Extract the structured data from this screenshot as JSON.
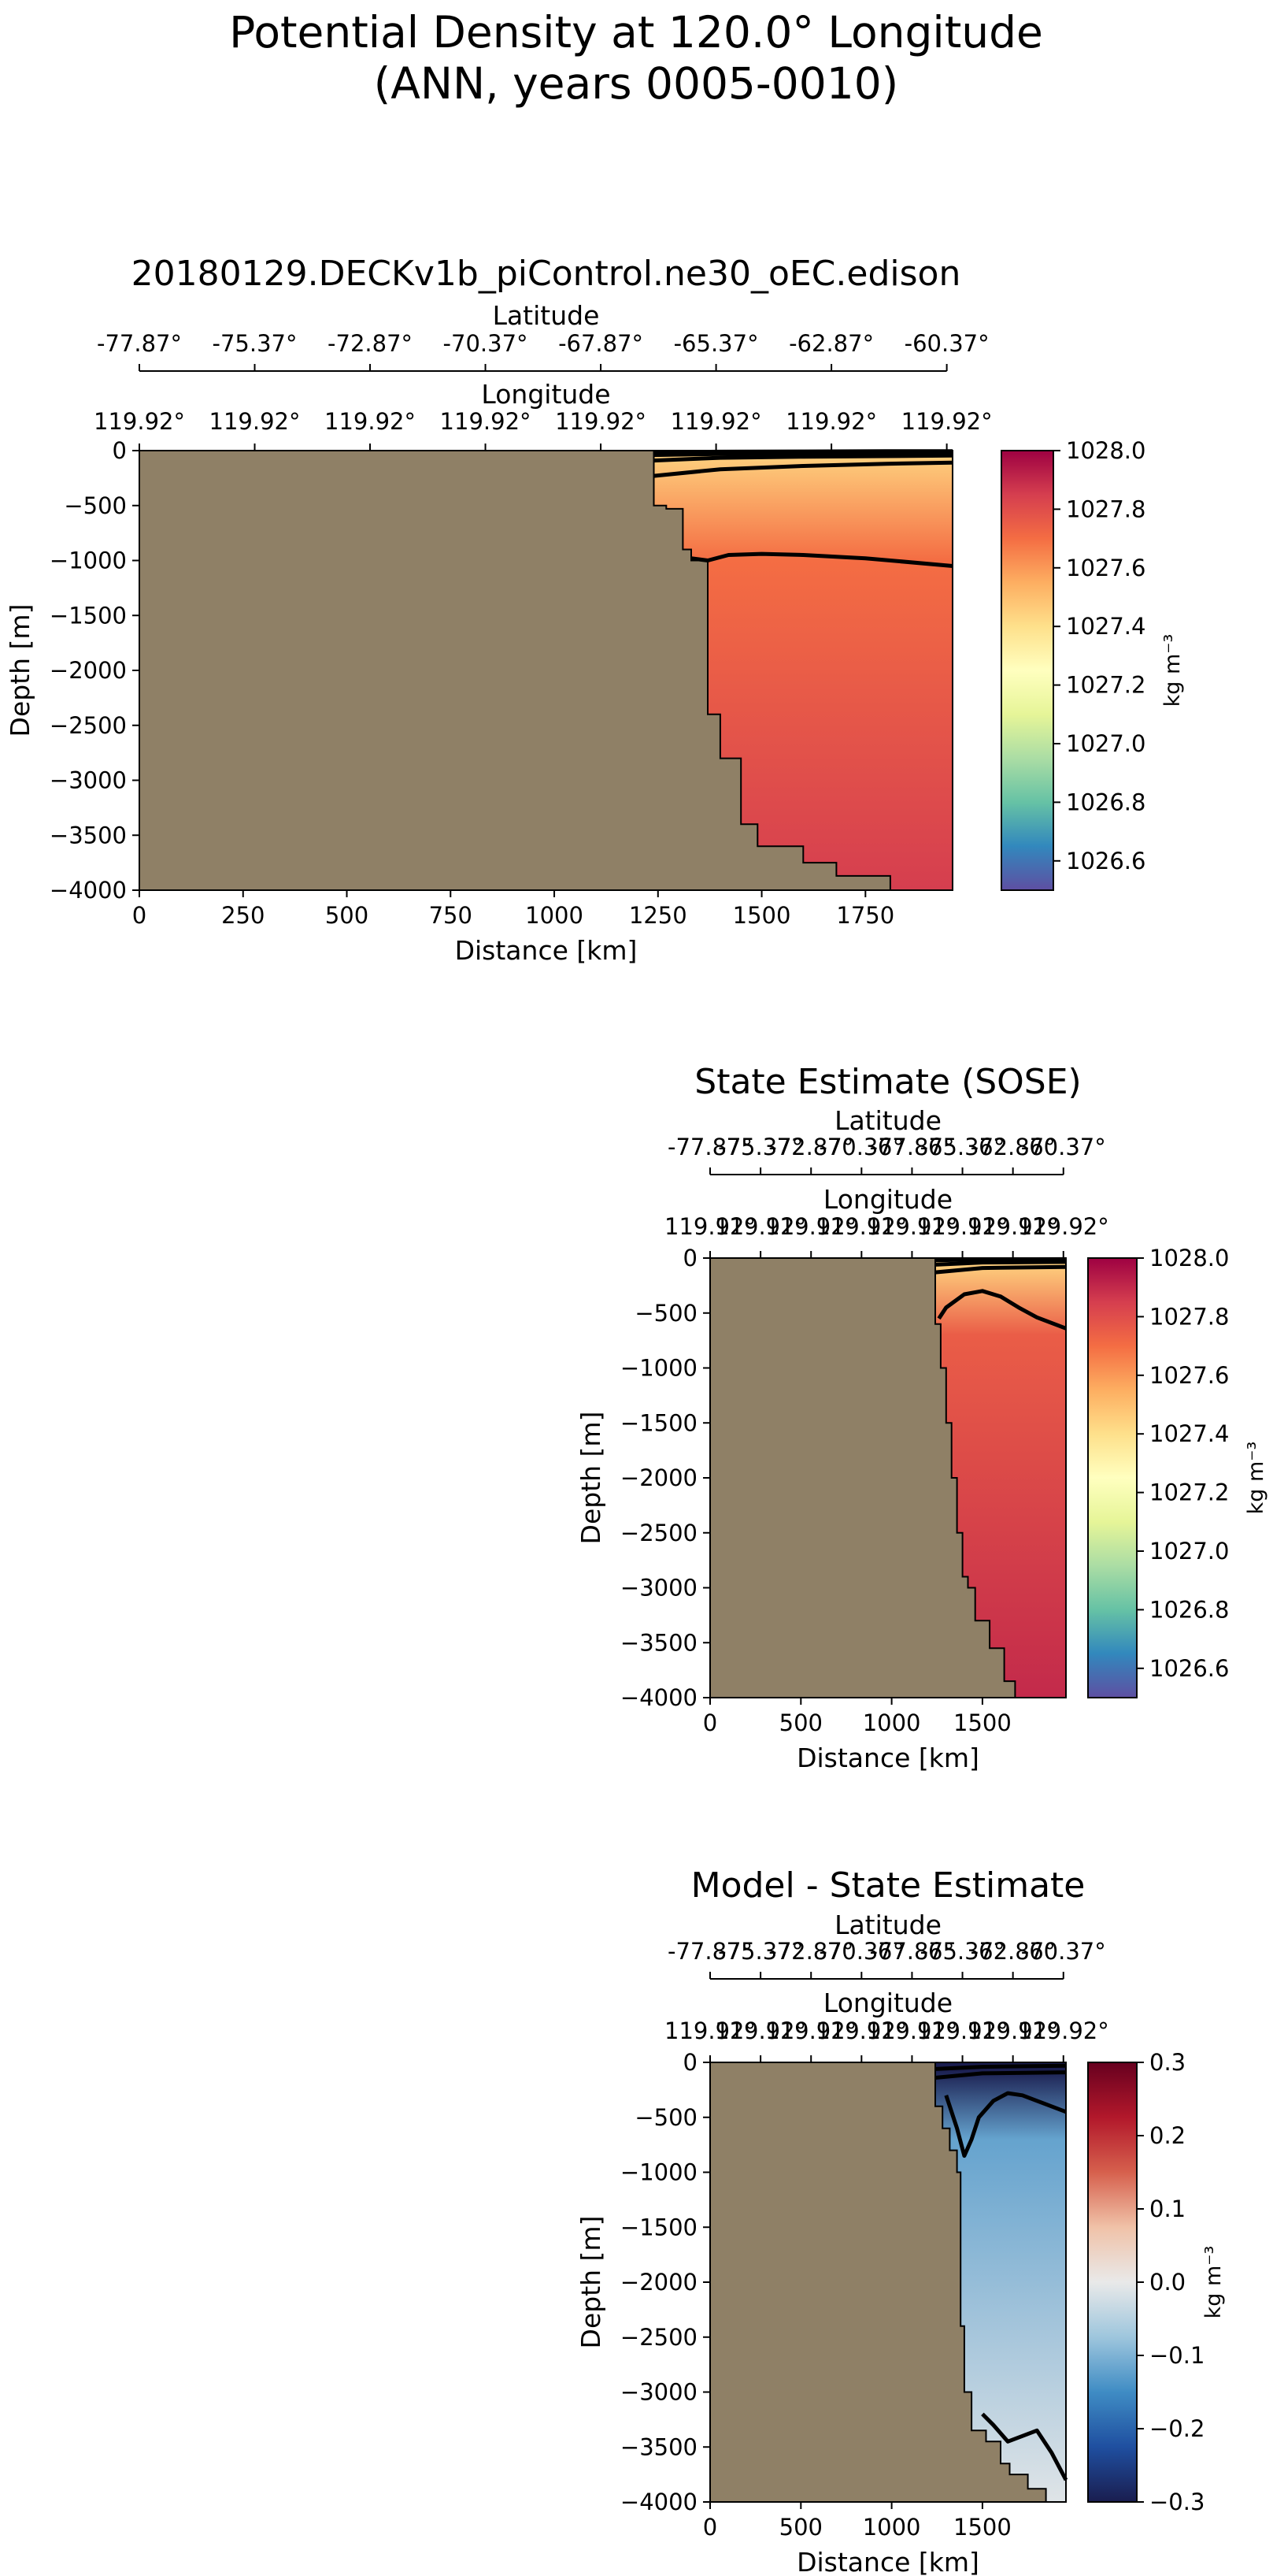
{
  "figure": {
    "title_line1": "Potential Density at 120.0° Longitude",
    "title_line2": "(ANN, years 0005-0010)"
  },
  "colors": {
    "land": "#8f8066",
    "density_cmap": [
      "#5e4fa2",
      "#3288bd",
      "#66c2a5",
      "#abdda4",
      "#e6f598",
      "#ffffbf",
      "#fee08b",
      "#fdae61",
      "#f46d43",
      "#d53e4f",
      "#9e0142"
    ],
    "bias_cmap": [
      "#1a1d4f",
      "#1f4fa0",
      "#3f8cc4",
      "#9ec6dd",
      "#e9e9e9",
      "#f0c2a8",
      "#d6604d",
      "#b2182b",
      "#67001f"
    ]
  },
  "chart_data": [
    {
      "type": "heatmap",
      "title": "20180129.DECKv1b_piControl.ne30_oEC.edison",
      "xlabel": "Distance [km]",
      "ylabel": "Depth [m]",
      "xlim": [
        0,
        1960
      ],
      "ylim": [
        -4000,
        0
      ],
      "x_ticks": [
        0,
        250,
        500,
        750,
        1000,
        1250,
        1500,
        1750
      ],
      "y_ticks": [
        0,
        -500,
        -1000,
        -1500,
        -2000,
        -2500,
        -3000,
        -3500,
        -4000
      ],
      "latitude_axis": {
        "label": "Latitude",
        "tick_labels": [
          "-77.87°",
          "-75.37°",
          "-72.87°",
          "-70.37°",
          "-67.87°",
          "-65.37°",
          "-62.87°",
          "-60.37°"
        ],
        "tick_distances_km": [
          0,
          278,
          556,
          834,
          1112,
          1390,
          1668,
          1946
        ]
      },
      "longitude_axis": {
        "label": "Longitude",
        "tick_labels": [
          "119.92°",
          "119.92°",
          "119.92°",
          "119.92°",
          "119.92°",
          "119.92°",
          "119.92°",
          "119.92°"
        ],
        "tick_distances_km": [
          0,
          278,
          556,
          834,
          1112,
          1390,
          1668,
          1946
        ]
      },
      "colorbar": {
        "label": "kg m⁻³",
        "range": [
          1026.5,
          1028.0
        ],
        "ticks": [
          1026.6,
          1026.8,
          1027.0,
          1027.2,
          1027.4,
          1027.6,
          1027.8,
          1028.0
        ],
        "tick_labels": [
          "1026.6",
          "1026.8",
          "1027.0",
          "1027.2",
          "1027.4",
          "1027.6",
          "1027.8",
          "1028.0"
        ],
        "cmap": "density"
      },
      "field": {
        "surface_value": 1027.45,
        "mid_value": 1027.7,
        "deep_value": 1027.85,
        "surface_depth": -50,
        "mid_depth": -1000,
        "deep_depth": -4000
      },
      "bathymetry": {
        "distance_km": [
          1240,
          1240,
          1270,
          1270,
          1310,
          1310,
          1330,
          1330,
          1355,
          1355,
          1370,
          1370,
          1400,
          1400,
          1450,
          1450,
          1490,
          1490,
          1600,
          1600,
          1680,
          1680,
          1810,
          1810
        ],
        "depth_m": [
          0,
          -500,
          -500,
          -530,
          -530,
          -900,
          -900,
          -1000,
          -1000,
          -1000,
          -1000,
          -2400,
          -2400,
          -2800,
          -2800,
          -3400,
          -3400,
          -3600,
          -3600,
          -3750,
          -3750,
          -3870,
          -3870,
          -4000
        ]
      },
      "contours": [
        {
          "level": 1027.2,
          "distance_km": [
            1240,
            1400,
            1600,
            1800,
            1960
          ],
          "depth_m": [
            -15,
            -10,
            -8,
            -6,
            -5
          ]
        },
        {
          "level": 1027.3,
          "distance_km": [
            1240,
            1400,
            1600,
            1800,
            1960
          ],
          "depth_m": [
            -40,
            -30,
            -25,
            -20,
            -18
          ]
        },
        {
          "level": 1027.4,
          "distance_km": [
            1240,
            1400,
            1600,
            1800,
            1960
          ],
          "depth_m": [
            -90,
            -65,
            -55,
            -50,
            -45
          ]
        },
        {
          "level": 1027.5,
          "distance_km": [
            1240,
            1400,
            1600,
            1800,
            1960
          ],
          "depth_m": [
            -230,
            -170,
            -140,
            -120,
            -110
          ]
        },
        {
          "level": 1027.7,
          "distance_km": [
            1330,
            1370,
            1420,
            1500,
            1600,
            1750,
            1960
          ],
          "depth_m": [
            -980,
            -1000,
            -950,
            -940,
            -950,
            -980,
            -1050
          ]
        }
      ]
    },
    {
      "type": "heatmap",
      "title": "State Estimate (SOSE)",
      "xlabel": "Distance [km]",
      "ylabel": "Depth [m]",
      "xlim": [
        0,
        1960
      ],
      "ylim": [
        -4000,
        0
      ],
      "x_ticks": [
        0,
        500,
        1000,
        1500
      ],
      "y_ticks": [
        0,
        -500,
        -1000,
        -1500,
        -2000,
        -2500,
        -3000,
        -3500,
        -4000
      ],
      "latitude_axis": {
        "label": "Latitude",
        "tick_labels": [
          "-77.87°",
          "-75.37°",
          "-72.87°",
          "-70.37°",
          "-67.87°",
          "-65.37°",
          "-62.87°",
          "-60.37°"
        ],
        "tick_distances_km": [
          0,
          278,
          556,
          834,
          1112,
          1390,
          1668,
          1946
        ]
      },
      "longitude_axis": {
        "label": "Longitude",
        "tick_labels": [
          "119.92°",
          "119.92°",
          "119.92°",
          "119.92°",
          "119.92°",
          "119.92°",
          "119.92°",
          "119.92°"
        ],
        "tick_distances_km": [
          0,
          278,
          556,
          834,
          1112,
          1390,
          1668,
          1946
        ]
      },
      "colorbar": {
        "label": "kg m⁻³",
        "range": [
          1026.5,
          1028.0
        ],
        "ticks": [
          1026.6,
          1026.8,
          1027.0,
          1027.2,
          1027.4,
          1027.6,
          1027.8,
          1028.0
        ],
        "tick_labels": [
          "1026.6",
          "1026.8",
          "1027.0",
          "1027.2",
          "1027.4",
          "1027.6",
          "1027.8",
          "1028.0"
        ],
        "cmap": "density"
      },
      "field": {
        "surface_value": 1027.45,
        "mid_value": 1027.75,
        "deep_value": 1027.9,
        "surface_depth": -60,
        "mid_depth": -700,
        "deep_depth": -4000
      },
      "bathymetry": {
        "distance_km": [
          1240,
          1240,
          1270,
          1270,
          1300,
          1300,
          1330,
          1330,
          1360,
          1360,
          1390,
          1390,
          1420,
          1420,
          1460,
          1460,
          1540,
          1540,
          1620,
          1620,
          1680,
          1680
        ],
        "depth_m": [
          0,
          -600,
          -600,
          -1000,
          -1000,
          -1500,
          -1500,
          -2000,
          -2000,
          -2500,
          -2500,
          -2900,
          -2900,
          -3000,
          -3000,
          -3300,
          -3300,
          -3550,
          -3550,
          -3850,
          -3850,
          -4000
        ]
      },
      "contours": [
        {
          "level": 1027.2,
          "distance_km": [
            1240,
            1500,
            1960
          ],
          "depth_m": [
            -20,
            -12,
            -10
          ]
        },
        {
          "level": 1027.3,
          "distance_km": [
            1240,
            1500,
            1960
          ],
          "depth_m": [
            -60,
            -40,
            -35
          ]
        },
        {
          "level": 1027.4,
          "distance_km": [
            1240,
            1500,
            1960
          ],
          "depth_m": [
            -130,
            -90,
            -80
          ]
        },
        {
          "level": 1027.6,
          "distance_km": [
            1260,
            1300,
            1400,
            1500,
            1600,
            1700,
            1800,
            1960
          ],
          "depth_m": [
            -550,
            -450,
            -330,
            -300,
            -350,
            -450,
            -540,
            -640
          ]
        }
      ]
    },
    {
      "type": "heatmap",
      "title": "Model - State Estimate",
      "xlabel": "Distance [km]",
      "ylabel": "Depth [m]",
      "xlim": [
        0,
        1960
      ],
      "ylim": [
        -4000,
        0
      ],
      "x_ticks": [
        0,
        500,
        1000,
        1500
      ],
      "y_ticks": [
        0,
        -500,
        -1000,
        -1500,
        -2000,
        -2500,
        -3000,
        -3500,
        -4000
      ],
      "latitude_axis": {
        "label": "Latitude",
        "tick_labels": [
          "-77.87°",
          "-75.37°",
          "-72.87°",
          "-70.37°",
          "-67.87°",
          "-65.37°",
          "-62.87°",
          "-60.37°"
        ],
        "tick_distances_km": [
          0,
          278,
          556,
          834,
          1112,
          1390,
          1668,
          1946
        ]
      },
      "longitude_axis": {
        "label": "Longitude",
        "tick_labels": [
          "119.92°",
          "119.92°",
          "119.92°",
          "119.92°",
          "119.92°",
          "119.92°",
          "119.92°",
          "119.92°"
        ],
        "tick_distances_km": [
          0,
          278,
          556,
          834,
          1112,
          1390,
          1668,
          1946
        ]
      },
      "colorbar": {
        "label": "kg m⁻³",
        "range": [
          -0.3,
          0.3
        ],
        "ticks": [
          -0.3,
          -0.2,
          -0.1,
          0.0,
          0.1,
          0.2,
          0.3
        ],
        "tick_labels": [
          "−0.3",
          "−0.2",
          "−0.1",
          "0.0",
          "0.1",
          "0.2",
          "0.3"
        ],
        "cmap": "bias"
      },
      "field": {
        "surface_value": -0.3,
        "mid_value": -0.12,
        "deep_value": -0.01,
        "surface_depth": -60,
        "mid_depth": -700,
        "deep_depth": -4000
      },
      "bathymetry": {
        "distance_km": [
          1240,
          1240,
          1280,
          1280,
          1320,
          1320,
          1360,
          1360,
          1380,
          1380,
          1400,
          1400,
          1440,
          1440,
          1520,
          1520,
          1600,
          1600,
          1650,
          1650,
          1750,
          1750,
          1850,
          1850
        ],
        "depth_m": [
          0,
          -400,
          -400,
          -600,
          -600,
          -800,
          -800,
          -1000,
          -1000,
          -2400,
          -2400,
          -3000,
          -3000,
          -3350,
          -3350,
          -3450,
          -3450,
          -3650,
          -3650,
          -3750,
          -3750,
          -3880,
          -3880,
          -4000
        ]
      },
      "contours": [
        {
          "level": -0.2,
          "distance_km": [
            1240,
            1500,
            1960
          ],
          "depth_m": [
            -60,
            -40,
            -30
          ]
        },
        {
          "level": -0.1,
          "distance_km": [
            1240,
            1500,
            1960
          ],
          "depth_m": [
            -140,
            -100,
            -90
          ]
        },
        {
          "level": -0.05,
          "distance_km": [
            1300,
            1360,
            1400,
            1440,
            1480,
            1560,
            1640,
            1720,
            1800,
            1880,
            1960
          ],
          "depth_m": [
            -300,
            -600,
            -850,
            -700,
            -500,
            -350,
            -280,
            -300,
            -350,
            -400,
            -450
          ]
        },
        {
          "level": 0.0,
          "distance_km": [
            1500,
            1560,
            1640,
            1720,
            1800,
            1880,
            1960
          ],
          "depth_m": [
            -3200,
            -3300,
            -3450,
            -3400,
            -3350,
            -3550,
            -3800
          ]
        }
      ]
    }
  ]
}
